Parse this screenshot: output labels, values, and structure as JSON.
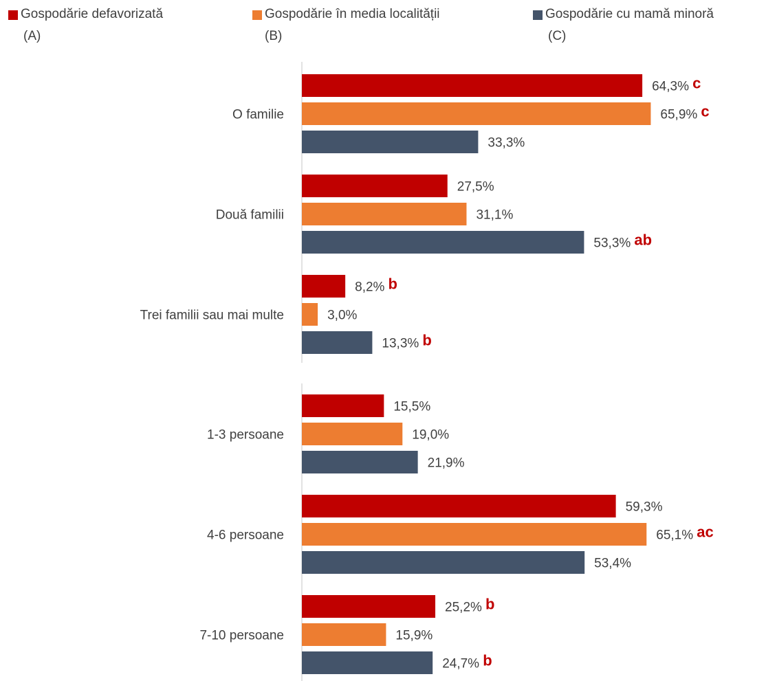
{
  "legend": [
    {
      "name": "Gospodărie defavorizată",
      "code": "(A)",
      "color": "#c00000"
    },
    {
      "name": "Gospodărie în media localității",
      "code": "(B)",
      "color": "#ed7d31"
    },
    {
      "name": "Gospodărie cu mamă minoră",
      "code": "(C)",
      "color": "#44546a"
    }
  ],
  "chart_data": [
    {
      "type": "bar",
      "orientation": "horizontal",
      "categories": [
        "O familie",
        "Două familii",
        "Trei familii sau mai multe"
      ],
      "series": [
        {
          "name": "Gospodărie defavorizată (A)",
          "color": "#c00000",
          "values": [
            64.3,
            27.5,
            8.2
          ],
          "labels": [
            "64,3%",
            "27,5%",
            "8,2%"
          ],
          "significance": [
            "c",
            "",
            "b"
          ]
        },
        {
          "name": "Gospodărie în media localității (B)",
          "color": "#ed7d31",
          "values": [
            65.9,
            31.1,
            3.0
          ],
          "labels": [
            "65,9%",
            "31,1%",
            "3,0%"
          ],
          "significance": [
            "c",
            "",
            ""
          ]
        },
        {
          "name": "Gospodărie cu mamă minoră (C)",
          "color": "#44546a",
          "values": [
            33.3,
            53.3,
            13.3
          ],
          "labels": [
            "33,3%",
            "53,3%",
            "13,3%"
          ],
          "significance": [
            "",
            "ab",
            "b"
          ]
        }
      ],
      "xlim": [
        0,
        100
      ],
      "grid": false,
      "legend": "top"
    },
    {
      "type": "bar",
      "orientation": "horizontal",
      "categories": [
        "1-3 persoane",
        "4-6 persoane",
        "7-10 persoane"
      ],
      "series": [
        {
          "name": "Gospodărie defavorizată (A)",
          "color": "#c00000",
          "values": [
            15.5,
            59.3,
            25.2
          ],
          "labels": [
            "15,5%",
            "59,3%",
            "25,2%"
          ],
          "significance": [
            "",
            "",
            "b"
          ]
        },
        {
          "name": "Gospodărie în media localității (B)",
          "color": "#ed7d31",
          "values": [
            19.0,
            65.1,
            15.9
          ],
          "labels": [
            "19,0%",
            "65,1%",
            "15,9%"
          ],
          "significance": [
            "",
            "ac",
            ""
          ]
        },
        {
          "name": "Gospodărie cu mamă minoră (C)",
          "color": "#44546a",
          "values": [
            21.9,
            53.4,
            24.7
          ],
          "labels": [
            "21,9%",
            "53,4%",
            "24,7%"
          ],
          "significance": [
            "",
            "",
            "b"
          ]
        }
      ],
      "xlim": [
        0,
        100
      ],
      "grid": false,
      "legend": "top"
    }
  ]
}
